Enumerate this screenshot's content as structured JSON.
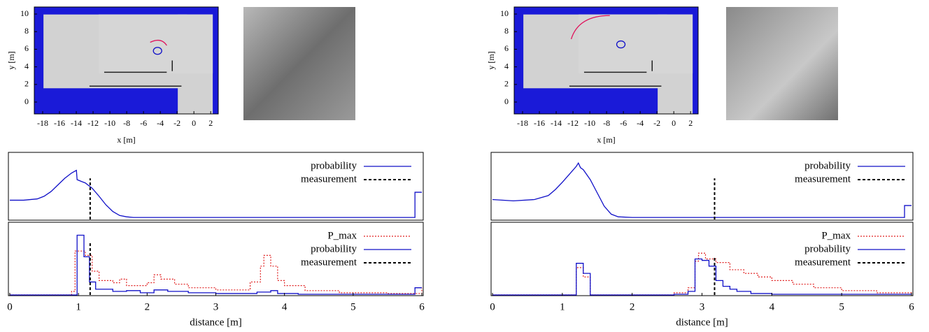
{
  "chart_data": [
    {
      "type": "image",
      "xlabel": "x [m]",
      "ylabel": "y [m]",
      "xlim": [
        -19,
        2.9
      ],
      "ylim": [
        -1.35,
        10.8
      ],
      "xticks": [
        -18,
        -16,
        -14,
        -12,
        -10,
        -8,
        -6,
        -4,
        -2,
        0,
        2
      ],
      "yticks": [
        0,
        2,
        4,
        6,
        8,
        10
      ]
    },
    {
      "type": "line",
      "xlim": [
        0,
        6
      ],
      "ylim": [
        0,
        1
      ],
      "series": [
        {
          "name": "probability",
          "color": "#1010c8",
          "style": "solid",
          "step": false,
          "x": [
            0,
            0.2,
            0.4,
            0.5,
            0.6,
            0.7,
            0.8,
            0.9,
            0.97,
            0.98,
            1.05,
            1.1,
            1.2,
            1.3,
            1.4,
            1.5,
            1.6,
            1.7,
            1.8,
            5.9,
            5.9,
            6
          ],
          "values": [
            0.29,
            0.29,
            0.31,
            0.35,
            0.42,
            0.52,
            0.62,
            0.7,
            0.74,
            0.6,
            0.57,
            0.55,
            0.47,
            0.35,
            0.22,
            0.12,
            0.06,
            0.04,
            0.03,
            0.03,
            0.41,
            0.41
          ]
        },
        {
          "name": "measurement",
          "color": "#000000",
          "style": "dashed",
          "step": false,
          "x": [
            1.17,
            1.17
          ],
          "values": [
            0,
            0.62
          ]
        }
      ]
    },
    {
      "type": "line",
      "xlim": [
        0,
        6
      ],
      "ylim": [
        0,
        1
      ],
      "xticks": [
        0,
        1,
        2,
        3,
        4,
        5,
        6
      ],
      "xlabel": "distance [m]",
      "series": [
        {
          "name": "P_max",
          "color": "#e02020",
          "style": "dotted",
          "step": true,
          "x": [
            0,
            0.9,
            0.95,
            1.1,
            1.2,
            1.3,
            1.5,
            1.6,
            1.7,
            2.0,
            2.1,
            2.2,
            2.4,
            2.6,
            3.0,
            3.5,
            3.65,
            3.7,
            3.8,
            3.9,
            4.0,
            4.3,
            4.8,
            5.5,
            5.9,
            6
          ],
          "values": [
            0,
            0.05,
            0.61,
            0.55,
            0.33,
            0.2,
            0.17,
            0.22,
            0.13,
            0.17,
            0.28,
            0.22,
            0.15,
            0.1,
            0.07,
            0.18,
            0.4,
            0.55,
            0.4,
            0.2,
            0.13,
            0.06,
            0.03,
            0.02,
            0.02,
            0.1
          ]
        },
        {
          "name": "probability",
          "color": "#1010c8",
          "style": "solid",
          "step": true,
          "x": [
            0,
            0.98,
            1.08,
            1.16,
            1.25,
            1.3,
            1.5,
            1.7,
            1.9,
            2.1,
            2.3,
            2.6,
            3.0,
            3.6,
            3.8,
            3.9,
            4.2,
            5.9,
            6
          ],
          "values": [
            0,
            0.83,
            0.53,
            0.18,
            0.08,
            0.08,
            0.05,
            0.06,
            0.03,
            0.07,
            0.05,
            0.03,
            0.02,
            0.04,
            0.06,
            0.02,
            0.01,
            0.1,
            0.1
          ]
        },
        {
          "name": "measurement",
          "color": "#000000",
          "style": "dashed",
          "step": false,
          "x": [
            1.17,
            1.17
          ],
          "values": [
            0,
            0.74
          ]
        }
      ]
    },
    {
      "type": "image",
      "xlabel": "x [m]",
      "ylabel": "y [m]",
      "xlim": [
        -19,
        2.9
      ],
      "ylim": [
        -1.35,
        10.8
      ],
      "xticks": [
        -18,
        -16,
        -14,
        -12,
        -10,
        -8,
        -6,
        -4,
        -2,
        0,
        2
      ],
      "yticks": [
        0,
        2,
        4,
        6,
        8,
        10
      ]
    },
    {
      "type": "line",
      "xlim": [
        0,
        6
      ],
      "ylim": [
        0,
        1
      ],
      "series": [
        {
          "name": "probability",
          "color": "#1010c8",
          "style": "solid",
          "step": false,
          "x": [
            0,
            0.3,
            0.6,
            0.8,
            0.9,
            1.0,
            1.1,
            1.2,
            1.23,
            1.26,
            1.3,
            1.4,
            1.5,
            1.6,
            1.7,
            1.8,
            2.0,
            5.9,
            5.9,
            6
          ],
          "values": [
            0.3,
            0.28,
            0.3,
            0.36,
            0.45,
            0.56,
            0.68,
            0.8,
            0.85,
            0.78,
            0.75,
            0.6,
            0.4,
            0.2,
            0.08,
            0.04,
            0.03,
            0.03,
            0.21,
            0.21
          ]
        },
        {
          "name": "measurement",
          "color": "#000000",
          "style": "dashed",
          "step": false,
          "x": [
            3.18,
            3.18
          ],
          "values": [
            0,
            0.62
          ]
        }
      ]
    },
    {
      "type": "line",
      "xlim": [
        0,
        6
      ],
      "ylim": [
        0,
        1
      ],
      "xticks": [
        0,
        1,
        2,
        3,
        4,
        5,
        6
      ],
      "xlabel": "distance [m]",
      "series": [
        {
          "name": "P_max",
          "color": "#e02020",
          "style": "dotted",
          "step": true,
          "x": [
            0,
            1.2,
            1.3,
            1.4,
            2.6,
            2.8,
            2.9,
            2.95,
            3.05,
            3.2,
            3.4,
            3.6,
            3.8,
            4.0,
            4.3,
            4.6,
            5.0,
            5.5,
            6
          ],
          "values": [
            0,
            0.38,
            0.25,
            0,
            0.03,
            0.1,
            0.47,
            0.58,
            0.5,
            0.45,
            0.35,
            0.3,
            0.25,
            0.2,
            0.15,
            0.1,
            0.06,
            0.03,
            0.02
          ]
        },
        {
          "name": "probability",
          "color": "#1010c8",
          "style": "solid",
          "step": true,
          "x": [
            0,
            1.2,
            1.3,
            1.4,
            2.6,
            2.8,
            2.9,
            3.0,
            3.1,
            3.2,
            3.3,
            3.4,
            3.5,
            3.7,
            4.0,
            6
          ],
          "values": [
            0,
            0.44,
            0.3,
            0,
            0.01,
            0.05,
            0.5,
            0.48,
            0.4,
            0.2,
            0.12,
            0.08,
            0.05,
            0.02,
            0.01,
            0.01
          ]
        },
        {
          "name": "measurement",
          "color": "#000000",
          "style": "dashed",
          "step": false,
          "x": [
            3.18,
            3.18
          ],
          "values": [
            0,
            0.52
          ]
        }
      ]
    }
  ]
}
